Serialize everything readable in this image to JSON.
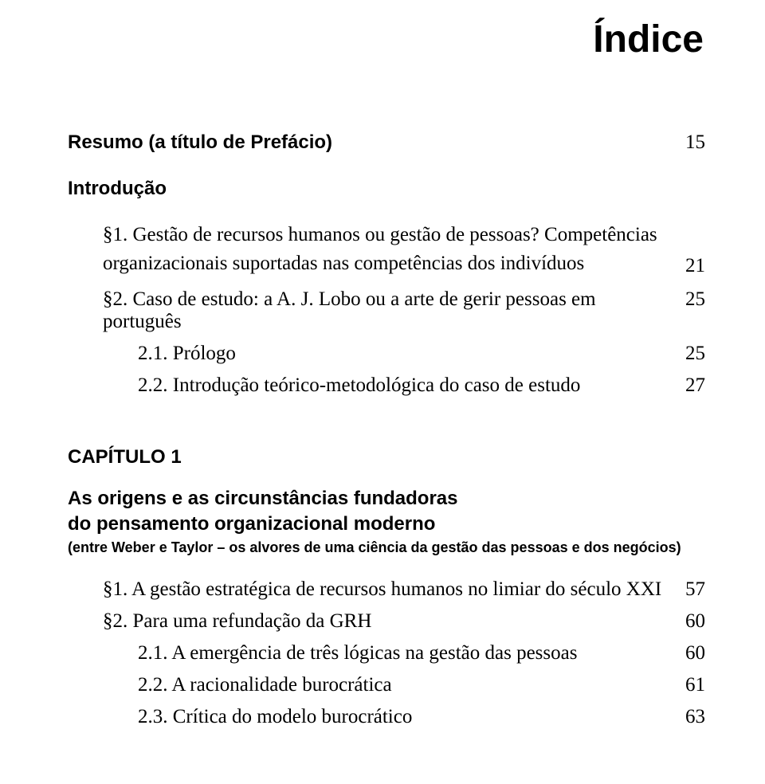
{
  "title": "Índice",
  "resumo": {
    "text": "Resumo (a título de Prefácio)",
    "page": "15"
  },
  "intro": {
    "heading": "Introdução",
    "items": [
      {
        "text_line1": "§1. Gestão de recursos humanos ou gestão de pessoas? Competências",
        "text_line2": "organizacionais suportadas nas competências dos indivíduos",
        "page": "21",
        "indent": 1,
        "multiline": true
      },
      {
        "text": "§2. Caso de estudo: a A. J. Lobo ou a arte de gerir pessoas em português",
        "page": "25",
        "indent": 1
      },
      {
        "text": "2.1. Prólogo",
        "page": "25",
        "indent": 2
      },
      {
        "text": "2.2. Introdução teórico-metodológica do caso de estudo",
        "page": "27",
        "indent": 2
      }
    ]
  },
  "chapter1": {
    "label": "CAPÍTULO 1",
    "title_line1": "As origens e as circunstâncias fundadoras",
    "title_line2": "do pensamento organizacional moderno",
    "subtitle": "(entre Weber e Taylor – os alvores de uma ciência da gestão das pessoas e dos negócios)",
    "items": [
      {
        "text": "§1. A gestão estratégica de recursos humanos no limiar do século XXI",
        "page": "57",
        "indent": 1
      },
      {
        "text": "§2. Para uma refundação da GRH",
        "page": "60",
        "indent": 1
      },
      {
        "text": "2.1. A emergência de três lógicas na gestão das pessoas",
        "page": "60",
        "indent": 2
      },
      {
        "text": "2.2. A racionalidade burocrática",
        "page": "61",
        "indent": 2
      },
      {
        "text": "2.3. Crítica do modelo burocrático",
        "page": "63",
        "indent": 2
      }
    ]
  }
}
